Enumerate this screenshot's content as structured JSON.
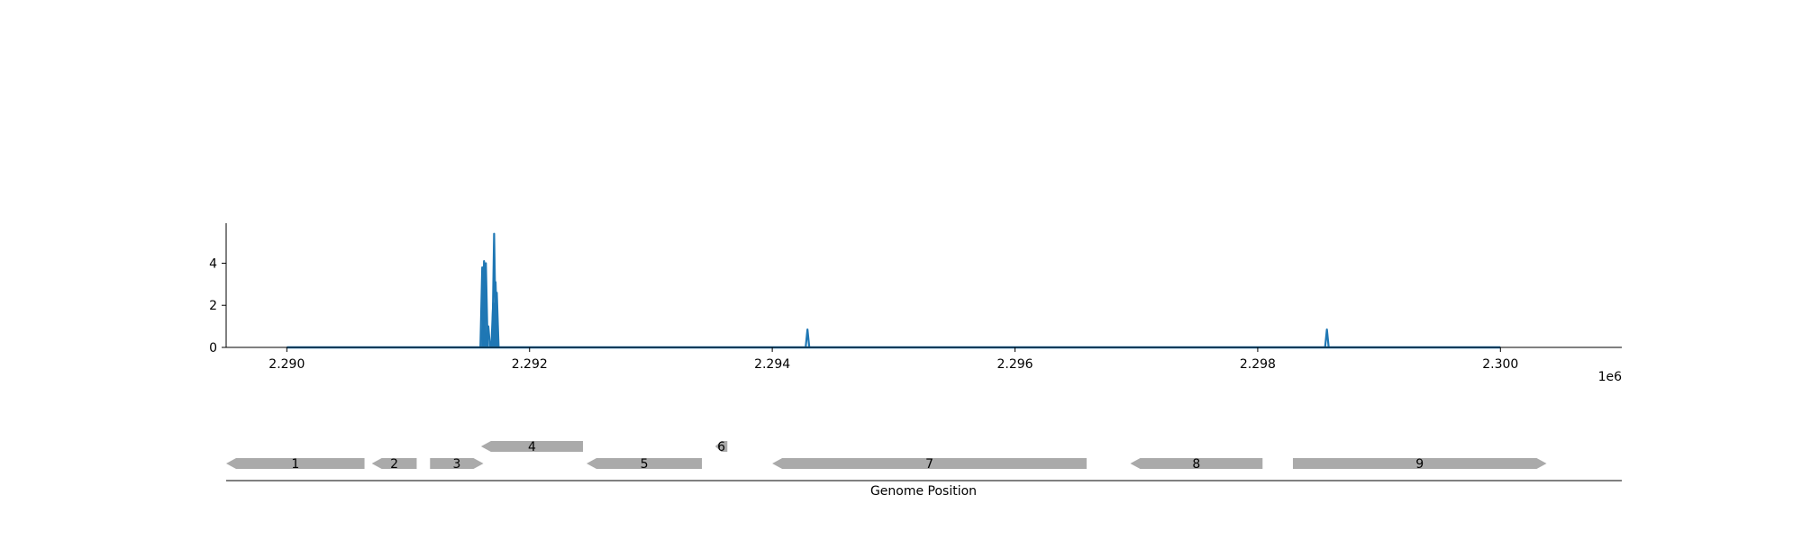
{
  "chart_data": [
    {
      "type": "line",
      "title": "",
      "xlabel": "",
      "ylabel": "",
      "x_offset_label": "1e6",
      "xlim": [
        2289500,
        2301000
      ],
      "ylim": [
        0,
        5.9
      ],
      "x_ticks": [
        2290000,
        2292000,
        2294000,
        2296000,
        2298000,
        2300000
      ],
      "x_tick_labels": [
        "2.290",
        "2.292",
        "2.294",
        "2.296",
        "2.298",
        "2.300"
      ],
      "y_ticks": [
        0,
        2,
        4
      ],
      "y_tick_labels": [
        "0",
        "2",
        "4"
      ],
      "grid": false,
      "color": "#1f77b4",
      "baseline_range": [
        2290000,
        2300000
      ],
      "peaks": [
        {
          "x": 2291610,
          "y": 3.8
        },
        {
          "x": 2291625,
          "y": 4.1
        },
        {
          "x": 2291640,
          "y": 4.0
        },
        {
          "x": 2291660,
          "y": 1.0
        },
        {
          "x": 2291700,
          "y": 2.1
        },
        {
          "x": 2291708,
          "y": 5.4
        },
        {
          "x": 2291720,
          "y": 3.1
        },
        {
          "x": 2291730,
          "y": 2.6
        },
        {
          "x": 2294290,
          "y": 0.85
        },
        {
          "x": 2298570,
          "y": 0.85
        }
      ]
    },
    {
      "type": "gene-track",
      "xlabel": "Genome Position",
      "xlim": [
        2289500,
        2301000
      ],
      "color": "#aaaaaa",
      "genes": [
        {
          "label": "1",
          "start": 2289500,
          "end": 2290640,
          "strand": "-",
          "row": 0
        },
        {
          "label": "2",
          "start": 2290700,
          "end": 2291070,
          "strand": "-",
          "row": 0
        },
        {
          "label": "3",
          "start": 2291180,
          "end": 2291620,
          "strand": "+",
          "row": 0
        },
        {
          "label": "4",
          "start": 2291600,
          "end": 2292440,
          "strand": "-",
          "row": 1
        },
        {
          "label": "5",
          "start": 2292470,
          "end": 2293420,
          "strand": "-",
          "row": 0
        },
        {
          "label": "6",
          "start": 2293530,
          "end": 2293630,
          "strand": "-",
          "row": 1
        },
        {
          "label": "7",
          "start": 2294000,
          "end": 2296590,
          "strand": "-",
          "row": 0
        },
        {
          "label": "8",
          "start": 2296950,
          "end": 2298040,
          "strand": "-",
          "row": 0
        },
        {
          "label": "9",
          "start": 2298290,
          "end": 2300380,
          "strand": "+",
          "row": 0
        }
      ]
    }
  ]
}
